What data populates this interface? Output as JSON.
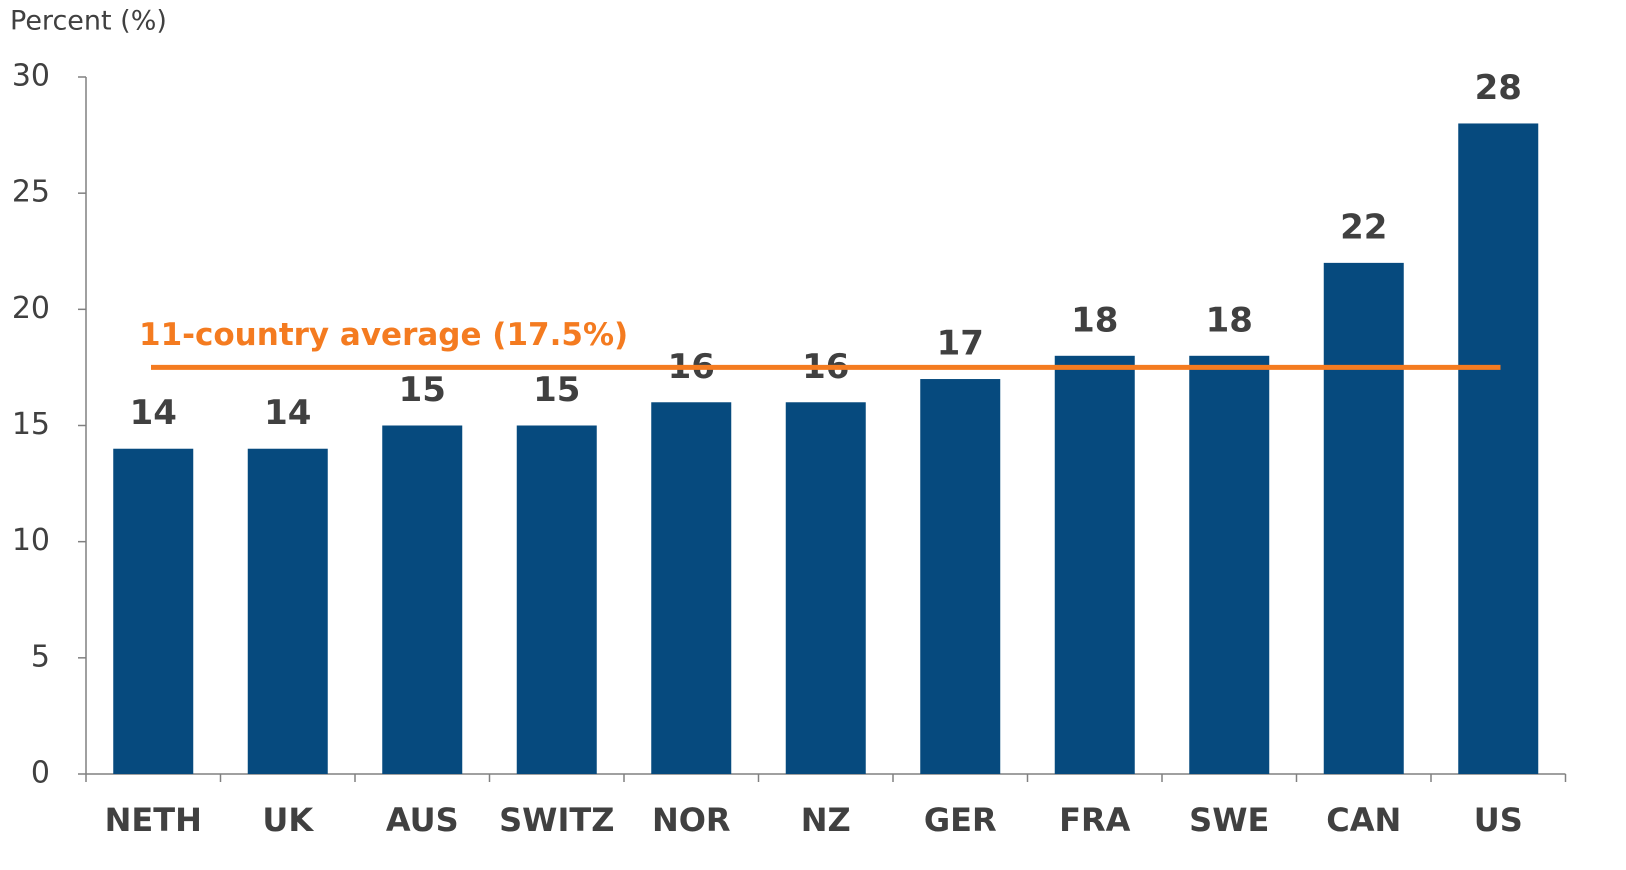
{
  "chart_data": {
    "type": "bar",
    "y_axis_label": "Percent (%)",
    "categories": [
      "NETH",
      "UK",
      "AUS",
      "SWITZ",
      "NOR",
      "NZ",
      "GER",
      "FRA",
      "SWE",
      "CAN",
      "US"
    ],
    "values": [
      14,
      14,
      15,
      15,
      16,
      16,
      17,
      18,
      18,
      22,
      28
    ],
    "color": "#064a7e",
    "ylim": [
      0,
      30
    ],
    "yticks": [
      0,
      5,
      10,
      15,
      20,
      25,
      30
    ],
    "average": 17.5,
    "average_color": "#f47b20",
    "annotation": "11-country average (17.5%)",
    "grid": false
  }
}
